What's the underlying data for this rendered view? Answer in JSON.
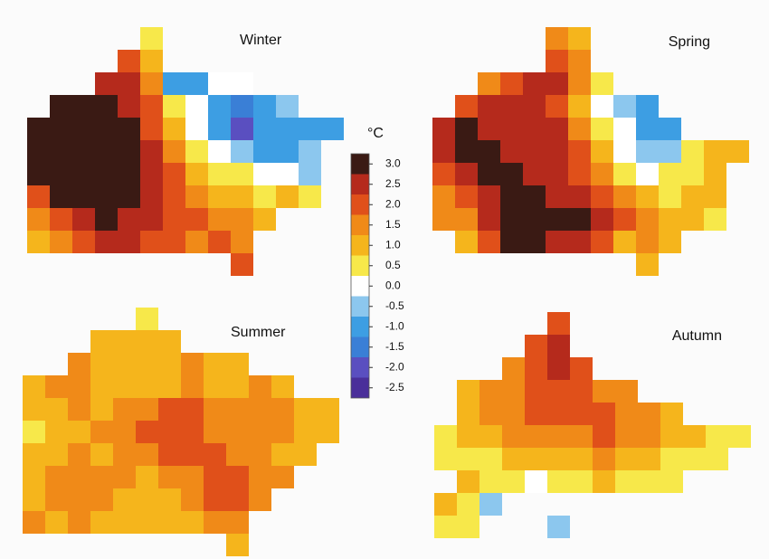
{
  "panels": [
    {
      "title": "Winter",
      "cells": [
        [
          null,
          null,
          null,
          null,
          null,
          0.5,
          null,
          null,
          null,
          null,
          null,
          null,
          null,
          null
        ],
        [
          null,
          null,
          null,
          null,
          2,
          1,
          null,
          null,
          null,
          null,
          null,
          null,
          null,
          null
        ],
        [
          null,
          null,
          null,
          2.5,
          2.5,
          1.5,
          -1,
          -1,
          0,
          0,
          null,
          null,
          null,
          null
        ],
        [
          null,
          3,
          3,
          3,
          2.5,
          2,
          0.5,
          0,
          -1,
          -1.5,
          -1,
          -0.5,
          null,
          null
        ],
        [
          3,
          3,
          3,
          3,
          3,
          2,
          1,
          0,
          -1,
          -2,
          -1,
          -1,
          -1,
          -1
        ],
        [
          3,
          3,
          3,
          3,
          3,
          2.5,
          1.5,
          0.5,
          0,
          -0.5,
          -1,
          -1,
          -0.5,
          null
        ],
        [
          3,
          3,
          3,
          3,
          3,
          2.5,
          2,
          1,
          0.5,
          0.5,
          0,
          0,
          -0.5,
          null
        ],
        [
          2,
          3,
          3,
          3,
          3,
          2.5,
          2,
          1.5,
          1,
          1,
          0.5,
          1,
          0.5,
          null
        ],
        [
          1.5,
          2,
          2.5,
          3,
          2.5,
          2.5,
          2,
          2,
          1.5,
          1.5,
          1,
          null,
          null,
          null
        ],
        [
          1,
          1.5,
          2,
          2.5,
          2.5,
          2,
          2,
          1.5,
          2,
          1.5,
          null,
          null,
          null,
          null
        ],
        [
          null,
          null,
          null,
          null,
          null,
          null,
          null,
          null,
          null,
          2,
          null,
          null,
          null,
          null
        ]
      ]
    },
    {
      "title": "Spring",
      "cells": [
        [
          null,
          null,
          null,
          null,
          null,
          1.5,
          1,
          null,
          null,
          null,
          null,
          null,
          null,
          null
        ],
        [
          null,
          null,
          null,
          null,
          null,
          2,
          1.5,
          null,
          null,
          null,
          null,
          null,
          null,
          null
        ],
        [
          null,
          null,
          1.5,
          2,
          2.5,
          2.5,
          1.5,
          0.5,
          null,
          null,
          null,
          null,
          null,
          null
        ],
        [
          null,
          2,
          2.5,
          2.5,
          2.5,
          2,
          1,
          0,
          -0.5,
          -1,
          null,
          null,
          null,
          null
        ],
        [
          2.5,
          3,
          2.5,
          2.5,
          2.5,
          2.5,
          1.5,
          0.5,
          0,
          -1,
          -1,
          null,
          null,
          null
        ],
        [
          2.5,
          3,
          3,
          2.5,
          2.5,
          2.5,
          2,
          1,
          0,
          -0.5,
          -0.5,
          0.5,
          1,
          1
        ],
        [
          2,
          2.5,
          3,
          3,
          2.5,
          2.5,
          2,
          1.5,
          0.5,
          0,
          0.5,
          0.5,
          1,
          null
        ],
        [
          1.5,
          2,
          2.5,
          3,
          3,
          2.5,
          2.5,
          2,
          1.5,
          1,
          0.5,
          1,
          1,
          null
        ],
        [
          1.5,
          1.5,
          2.5,
          3,
          3,
          3,
          3,
          2.5,
          2,
          1.5,
          1,
          1,
          0.5,
          null
        ],
        [
          null,
          1,
          2,
          3,
          3,
          2.5,
          2.5,
          2,
          1,
          1.5,
          1,
          null,
          null,
          null
        ],
        [
          null,
          null,
          null,
          null,
          null,
          null,
          null,
          null,
          null,
          1,
          null,
          null,
          null,
          null
        ]
      ]
    },
    {
      "title": "Summer",
      "cells": [
        [
          null,
          null,
          null,
          null,
          null,
          0.5,
          null,
          null,
          null,
          null,
          null,
          null,
          null,
          null
        ],
        [
          null,
          null,
          null,
          1,
          1,
          1,
          1,
          null,
          null,
          null,
          null,
          null,
          null,
          null
        ],
        [
          null,
          null,
          1.5,
          1,
          1,
          1,
          1,
          1.5,
          1,
          1,
          null,
          null,
          null,
          null
        ],
        [
          1,
          1.5,
          1.5,
          1,
          1,
          1,
          1,
          1.5,
          1,
          1,
          1.5,
          1,
          null,
          null
        ],
        [
          1,
          1,
          1.5,
          1,
          1.5,
          1.5,
          2,
          2,
          1.5,
          1.5,
          1.5,
          1.5,
          1,
          1
        ],
        [
          0.5,
          1,
          1,
          1.5,
          1.5,
          2,
          2,
          2,
          1.5,
          1.5,
          1.5,
          1.5,
          1,
          1
        ],
        [
          1,
          1,
          1.5,
          1,
          1.5,
          1.5,
          2,
          2,
          2,
          1.5,
          1.5,
          1,
          1,
          null
        ],
        [
          1,
          1.5,
          1.5,
          1.5,
          1.5,
          1,
          1.5,
          1.5,
          2,
          2,
          1.5,
          1.5,
          null,
          null
        ],
        [
          1,
          1.5,
          1.5,
          1.5,
          1,
          1,
          1,
          1.5,
          2,
          2,
          1.5,
          null,
          null,
          null
        ],
        [
          1.5,
          1,
          1.5,
          1,
          1,
          1,
          1,
          1,
          1.5,
          1.5,
          null,
          null,
          null,
          null
        ],
        [
          null,
          null,
          null,
          null,
          null,
          null,
          null,
          null,
          null,
          1,
          null,
          null,
          null,
          null
        ]
      ]
    },
    {
      "title": "Autumn",
      "cells": [
        [
          null,
          null,
          null,
          null,
          null,
          2,
          null,
          null,
          null,
          null,
          null,
          null,
          null,
          null
        ],
        [
          null,
          null,
          null,
          null,
          2,
          2.5,
          null,
          null,
          null,
          null,
          null,
          null,
          null,
          null
        ],
        [
          null,
          null,
          null,
          1.5,
          2,
          2.5,
          2,
          null,
          null,
          null,
          null,
          null,
          null,
          null
        ],
        [
          null,
          1,
          1.5,
          1.5,
          2,
          2,
          2,
          1.5,
          1.5,
          null,
          null,
          null,
          null,
          null
        ],
        [
          null,
          1,
          1.5,
          1.5,
          2,
          2,
          2,
          2,
          1.5,
          1.5,
          1,
          null,
          null,
          null
        ],
        [
          0.5,
          1,
          1,
          1.5,
          1.5,
          1.5,
          1.5,
          2,
          1.5,
          1.5,
          1,
          1,
          0.5,
          0.5
        ],
        [
          0.5,
          0.5,
          0.5,
          1,
          1,
          1,
          1,
          1.5,
          1,
          1,
          0.5,
          0.5,
          0.5,
          null
        ],
        [
          null,
          1,
          0.5,
          0.5,
          0,
          0.5,
          0.5,
          1,
          0.5,
          0.5,
          0.5,
          null,
          null,
          null
        ],
        [
          1,
          0.5,
          -0.5,
          null,
          null,
          null,
          null,
          null,
          null,
          null,
          null,
          null,
          null,
          null
        ],
        [
          0.5,
          0.5,
          null,
          null,
          null,
          -0.5,
          null,
          null,
          null,
          null,
          null,
          null,
          null,
          null
        ],
        [
          null,
          null,
          null,
          null,
          null,
          null,
          null,
          null,
          null,
          null,
          null,
          null,
          null,
          null
        ]
      ]
    }
  ],
  "colorbar": {
    "unit": "°C",
    "lim": [
      -2.75,
      3.25
    ],
    "ticks": [
      {
        "value": 3,
        "label": "3.0"
      },
      2.5,
      {
        "value": 2,
        "label": "2.0"
      },
      1.5,
      {
        "value": 1,
        "label": "1.0"
      },
      0.5,
      {
        "value": 0,
        "label": "0.0"
      },
      -0.5,
      {
        "value": -1,
        "label": "-1.0"
      },
      -1.5,
      {
        "value": -2,
        "label": "-2.0"
      },
      -2.5
    ],
    "colors": [
      "#4a2f9a",
      "#5a4fc0",
      "#3a7fd6",
      "#3d9ee3",
      "#8cc7ee",
      "#ffffff",
      "#f7e84a",
      "#f5b51c",
      "#f08a18",
      "#e0501a",
      "#b52a1c",
      "#3a1a14"
    ]
  }
}
